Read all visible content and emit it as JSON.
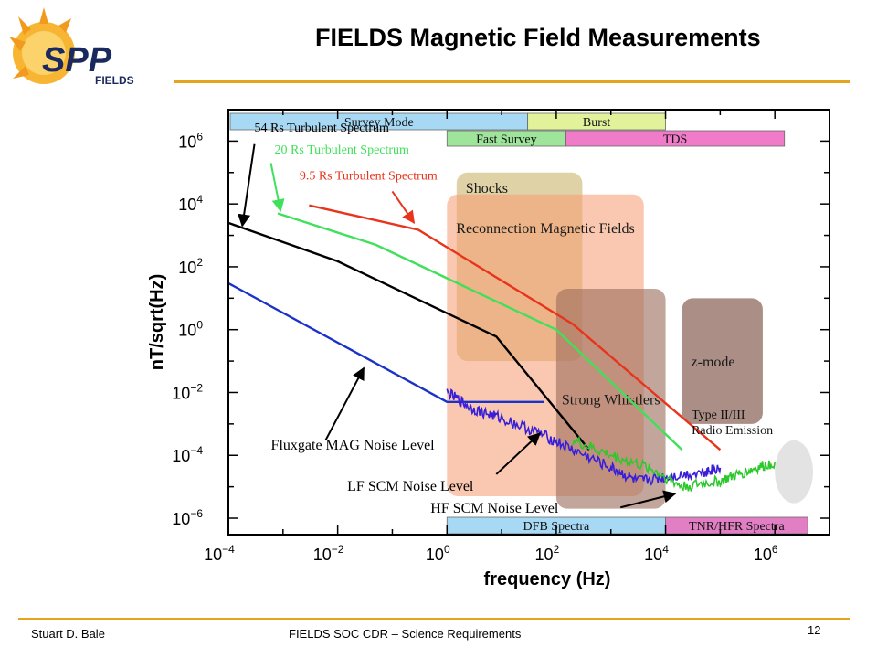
{
  "slide": {
    "title": "FIELDS Magnetic Field Measurements",
    "logo_text_main": "SPP",
    "logo_text_sub": "FIELDS",
    "footer_author": "Stuart D. Bale",
    "footer_center": "FIELDS SOC CDR – Science Requirements",
    "page_number": "12",
    "accent_color": "#e6a31e"
  },
  "chart_data": {
    "type": "line",
    "xlabel": "frequency  (Hz)",
    "ylabel": "nT/sqrt(Hz)",
    "x_scale": "log",
    "y_scale": "log",
    "xlim": [
      0.0001,
      10000000
    ],
    "ylim": [
      3e-07,
      10000000.0
    ],
    "x_ticks": [
      {
        "value": 0.0001,
        "base": "10",
        "exp": "−4"
      },
      {
        "value": 0.01,
        "base": "10",
        "exp": "−2"
      },
      {
        "value": 1,
        "base": "10",
        "exp": "0"
      },
      {
        "value": 100,
        "base": "10",
        "exp": "2"
      },
      {
        "value": 10000,
        "base": "10",
        "exp": "4"
      },
      {
        "value": 1000000,
        "base": "10",
        "exp": "6"
      }
    ],
    "y_ticks": [
      {
        "value": 1000000,
        "base": "10",
        "exp": "6"
      },
      {
        "value": 10000,
        "base": "10",
        "exp": "4"
      },
      {
        "value": 100,
        "base": "10",
        "exp": "2"
      },
      {
        "value": 1,
        "base": "10",
        "exp": "0"
      },
      {
        "value": 0.01,
        "base": "10",
        "exp": "−2"
      },
      {
        "value": 0.0001,
        "base": "10",
        "exp": "−4"
      },
      {
        "value": 1e-06,
        "base": "10",
        "exp": "−6"
      }
    ],
    "grid": false,
    "series": [
      {
        "name": "54 Rs Turbulent Spectrum",
        "color": "#000000",
        "x": [
          0.0001,
          0.01,
          8,
          400
        ],
        "y": [
          2500,
          150,
          0.6,
          0.00015
        ]
      },
      {
        "name": "20 Rs Turbulent Spectrum",
        "color": "#3fe05a",
        "x": [
          0.0008,
          0.05,
          100,
          20000
        ],
        "y": [
          5000,
          500,
          1,
          0.00015
        ]
      },
      {
        "name": "9.5 Rs Turbulent Spectrum",
        "color": "#e8341c",
        "x": [
          0.003,
          0.3,
          200,
          100000
        ],
        "y": [
          9000,
          1500,
          1.5,
          0.00015
        ]
      },
      {
        "name": "Fluxgate MAG Noise Level",
        "color": "#1a32c8",
        "x": [
          0.0001,
          1,
          60
        ],
        "y": [
          30,
          0.005,
          0.005
        ]
      },
      {
        "name": "LF SCM Noise Level",
        "color": "#3a1fd8",
        "x": [
          1,
          3,
          10,
          50,
          200,
          1000,
          3000,
          10000,
          50000,
          100000
        ],
        "y": [
          0.01,
          0.003,
          0.0015,
          0.0005,
          0.00015,
          4e-05,
          1.5e-05,
          2e-05,
          3e-05,
          4e-05
        ]
      },
      {
        "name": "HF SCM Noise Level",
        "color": "#2ec82e",
        "x": [
          200,
          1000,
          5000,
          20000,
          100000,
          300000,
          1000000
        ],
        "y": [
          0.0003,
          0.0001,
          4e-05,
          1e-05,
          1.5e-05,
          3e-05,
          6e-05
        ]
      }
    ],
    "modes": [
      {
        "label": "Survey Mode",
        "fill": "#a7d8f4",
        "x": [
          0.0001,
          30
        ],
        "row": "top"
      },
      {
        "label": "Burst",
        "fill": "#e2f29b",
        "x": [
          30,
          10000
        ],
        "row": "top"
      },
      {
        "label": "Fast Survey",
        "fill": "#9ee49b",
        "x": [
          1,
          150
        ],
        "row": "second"
      },
      {
        "label": "TDS",
        "fill": "#f07cc9",
        "x": [
          150,
          1500000
        ],
        "row": "second"
      },
      {
        "label": "DFB Spectra",
        "fill": "#a7d8f4",
        "x": [
          1,
          10000
        ],
        "row": "bottom"
      },
      {
        "label": "TNR/HFR Spectra",
        "fill": "#e27ec4",
        "x": [
          10000,
          4000000
        ],
        "row": "bottom"
      }
    ],
    "regions": [
      {
        "label": "Shocks",
        "fill": "#c4ad5f",
        "x": [
          1.5,
          300
        ],
        "y": [
          0.1,
          100000
        ]
      },
      {
        "label": "Reconnection Magnetic Fields",
        "fill": "#f59a70",
        "x": [
          1,
          4000
        ],
        "y": [
          5e-06,
          20000
        ]
      },
      {
        "label": "Strong Whistlers",
        "fill": "#9e6f5e",
        "x": [
          100,
          10000
        ],
        "y": [
          2e-06,
          20
        ]
      },
      {
        "label": "z-mode",
        "fill": "#8a6356",
        "x": [
          20000,
          600000
        ],
        "y": [
          0.001,
          10
        ]
      },
      {
        "label": "Type II/III Radio Emission",
        "fill": "#cccccc",
        "x": [
          1000000,
          5000000
        ],
        "y": [
          3e-06,
          0.0003
        ]
      }
    ],
    "annotations": [
      {
        "text": "54 Rs Turbulent Spectrum",
        "color": "#000000"
      },
      {
        "text": "20 Rs Turbulent Spectrum",
        "color": "#3fe05a"
      },
      {
        "text": "9.5 Rs Turbulent Spectrum",
        "color": "#e8341c"
      },
      {
        "text": "Fluxgate MAG Noise Level",
        "color": "#000000"
      },
      {
        "text": "LF SCM Noise Level",
        "color": "#000000"
      },
      {
        "text": "HF SCM Noise Level",
        "color": "#000000"
      }
    ]
  }
}
